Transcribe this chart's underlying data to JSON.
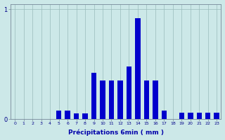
{
  "categories": [
    0,
    1,
    2,
    3,
    4,
    5,
    6,
    7,
    8,
    9,
    10,
    11,
    12,
    13,
    14,
    15,
    16,
    17,
    18,
    19,
    20,
    21,
    22,
    23
  ],
  "values": [
    0,
    0,
    0,
    0,
    0,
    0.08,
    0.08,
    0.05,
    0.05,
    0.42,
    0.35,
    0.35,
    0.35,
    0.48,
    0.92,
    0.35,
    0.35,
    0.08,
    0,
    0.06,
    0.06,
    0.06,
    0.06,
    0.06
  ],
  "bar_color": "#0000cc",
  "background_color": "#cce8e8",
  "xlabel": "Précipitations 6min ( mm )",
  "ylim": [
    0,
    1.05
  ],
  "yticks": [
    0,
    1
  ],
  "xlim": [
    -0.5,
    23.5
  ],
  "grid_color": "#99bbbb",
  "axis_color": "#778899",
  "bar_width": 0.6
}
